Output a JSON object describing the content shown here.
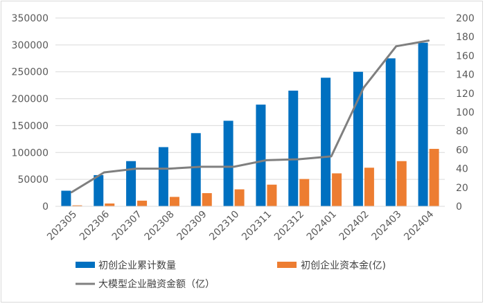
{
  "chart_data": {
    "type": "bar",
    "categories": [
      "202305",
      "202306",
      "202307",
      "202308",
      "202309",
      "202310",
      "202311",
      "202312",
      "202401",
      "202402",
      "202403",
      "202404"
    ],
    "series": [
      {
        "name": "初创企业累计数量",
        "axis": "left",
        "type": "bar",
        "color": "#0070c0",
        "values": [
          29000,
          58000,
          84000,
          110000,
          136000,
          159000,
          189000,
          215000,
          239000,
          250000,
          275000,
          304000
        ]
      },
      {
        "name": "初创企业资本金(亿)",
        "axis": "right",
        "type": "bar",
        "color": "#ed7d31",
        "values": [
          1,
          3,
          6,
          10,
          14,
          18,
          23,
          29,
          35,
          41,
          48,
          61
        ]
      },
      {
        "name": "大模型企业融资金额（亿）",
        "axis": "right",
        "type": "line",
        "color": "#7f7f7f",
        "values": [
          15,
          36,
          40,
          40,
          42,
          42,
          49,
          50,
          53,
          126,
          170,
          176
        ]
      }
    ],
    "left_axis": {
      "min": 0,
      "max": 350000,
      "step": 50000,
      "tick_labels": [
        "0",
        "50000",
        "100000",
        "150000",
        "200000",
        "250000",
        "300000",
        "350000"
      ]
    },
    "right_axis": {
      "min": 0,
      "max": 200,
      "step": 20,
      "tick_labels": [
        "0",
        "20",
        "40",
        "60",
        "80",
        "100",
        "120",
        "140",
        "160",
        "180",
        "200"
      ]
    },
    "grid": true,
    "legend_position": "bottom"
  }
}
